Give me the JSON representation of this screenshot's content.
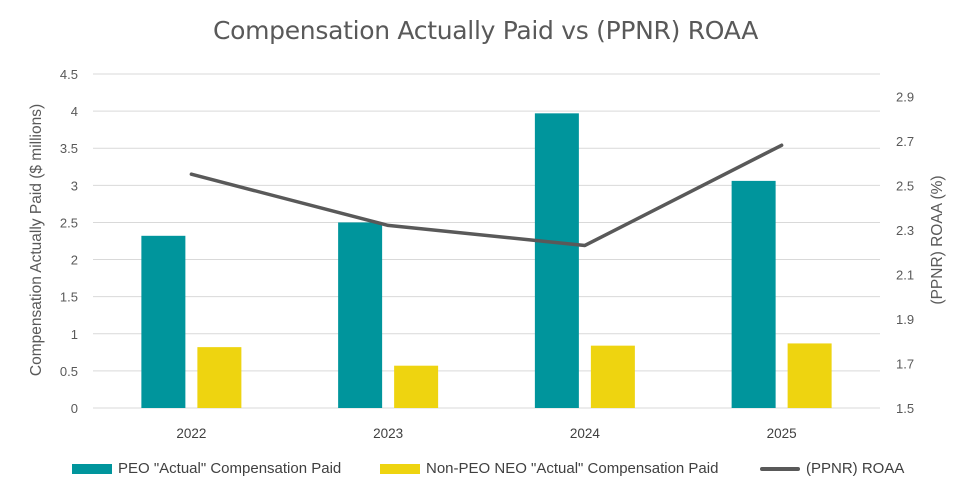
{
  "chart_data": {
    "type": "bar",
    "title": "Compensation Actually Paid vs (PPNR) ROAA",
    "categories": [
      "2022",
      "2023",
      "2024",
      "2025"
    ],
    "ylabel": "Compensation Actually Paid ($ millions)",
    "ylabel_right": "(PPNR) ROAA (%)",
    "ylim": [
      0,
      4.5
    ],
    "ylim_right": [
      1.5,
      3.0
    ],
    "yticks": [
      "0",
      "0.5",
      "1",
      "1.5",
      "2",
      "2.5",
      "3",
      "3.5",
      "4",
      "4.5"
    ],
    "yticks_right": [
      "1.5",
      "1.7",
      "1.9",
      "2.1",
      "2.3",
      "2.5",
      "2.7",
      "2.9"
    ],
    "grid": true,
    "legend_position": "bottom",
    "series": [
      {
        "name": "PEO \"Actual\" Compensation Paid",
        "kind": "bar",
        "axis": "left",
        "color": "#00959c",
        "values": [
          2.32,
          2.5,
          3.97,
          3.06
        ]
      },
      {
        "name": "Non-PEO NEO \"Actual\" Compensation Paid",
        "kind": "bar",
        "axis": "left",
        "color": "#eed410",
        "values": [
          0.82,
          0.57,
          0.84,
          0.87
        ]
      },
      {
        "name": "(PPNR) ROAA",
        "kind": "line",
        "axis": "right",
        "color": "#595959",
        "values": [
          2.55,
          2.32,
          2.23,
          2.68
        ]
      }
    ]
  }
}
